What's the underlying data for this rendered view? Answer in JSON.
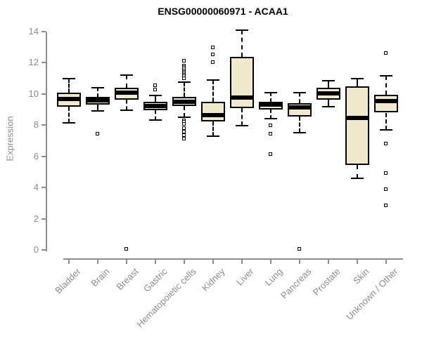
{
  "chart_data": {
    "type": "boxplot",
    "title": "ENSG00000060971 - ACAA1",
    "ylabel": "Expression",
    "xlabel": "",
    "ylim": [
      0,
      14
    ],
    "yticks": [
      0,
      2,
      4,
      6,
      8,
      10,
      12,
      14
    ],
    "grid": false,
    "legend": false,
    "categories": [
      "Bladder",
      "Brain",
      "Breast",
      "Gastric",
      "Hematopoietic cells",
      "Kidney",
      "Liver",
      "Lung",
      "Pancreas",
      "Prostate",
      "Skin",
      "Unknown / Other"
    ],
    "boxes": [
      {
        "category": "Bladder",
        "whisker_low": 8.15,
        "q1": 9.2,
        "median": 9.7,
        "q3": 10.1,
        "whisker_high": 11.0,
        "outliers": []
      },
      {
        "category": "Brain",
        "whisker_low": 8.9,
        "q1": 9.3,
        "median": 9.6,
        "q3": 9.8,
        "whisker_high": 10.4,
        "outliers": [
          7.45
        ]
      },
      {
        "category": "Breast",
        "whisker_low": 8.95,
        "q1": 9.65,
        "median": 10.1,
        "q3": 10.4,
        "whisker_high": 11.2,
        "outliers": [
          0.05
        ]
      },
      {
        "category": "Gastric",
        "whisker_low": 8.35,
        "q1": 8.95,
        "median": 9.25,
        "q3": 9.5,
        "whisker_high": 9.9,
        "outliers": [
          10.55,
          10.25
        ]
      },
      {
        "category": "Hematopoietic cells",
        "whisker_low": 8.5,
        "q1": 9.25,
        "median": 9.5,
        "q3": 9.8,
        "whisker_high": 10.75,
        "outliers": [
          12.1,
          11.8,
          11.7,
          11.6,
          11.5,
          11.4,
          11.3,
          11.2,
          11.1,
          11.0,
          8.3,
          8.2,
          8.05,
          7.8,
          7.55,
          7.35,
          7.1
        ]
      },
      {
        "category": "Kidney",
        "whisker_low": 7.3,
        "q1": 8.25,
        "median": 8.65,
        "q3": 9.5,
        "whisker_high": 10.9,
        "outliers": [
          12.95,
          12.5,
          12.0
        ]
      },
      {
        "category": "Liver",
        "whisker_low": 7.95,
        "q1": 9.1,
        "median": 9.75,
        "q3": 12.4,
        "whisker_high": 14.1,
        "outliers": []
      },
      {
        "category": "Lung",
        "whisker_low": 8.4,
        "q1": 9.0,
        "median": 9.3,
        "q3": 9.5,
        "whisker_high": 10.1,
        "outliers": [
          7.95,
          7.45,
          6.1
        ]
      },
      {
        "category": "Pancreas",
        "whisker_low": 7.5,
        "q1": 8.55,
        "median": 9.15,
        "q3": 9.4,
        "whisker_high": 10.1,
        "outliers": [
          0.05
        ]
      },
      {
        "category": "Prostate",
        "whisker_low": 9.2,
        "q1": 9.65,
        "median": 10.05,
        "q3": 10.4,
        "whisker_high": 10.85,
        "outliers": []
      },
      {
        "category": "Skin",
        "whisker_low": 4.6,
        "q1": 5.45,
        "median": 8.45,
        "q3": 10.5,
        "whisker_high": 11.0,
        "outliers": []
      },
      {
        "category": "Unknown / Other",
        "whisker_low": 7.7,
        "q1": 8.8,
        "median": 9.55,
        "q3": 9.95,
        "whisker_high": 11.15,
        "outliers": [
          12.6,
          6.8,
          4.9,
          3.85,
          2.85
        ]
      }
    ],
    "colors": {
      "box_fill": "#F0E9CD",
      "box_border": "#000000",
      "median": "#000000",
      "whisker": "#000000",
      "outlier_border": "#000000",
      "axis": "#8C8C8C",
      "tick_label": "#8C8C8C",
      "title": "#000000",
      "background": "#FFFFFF"
    }
  }
}
